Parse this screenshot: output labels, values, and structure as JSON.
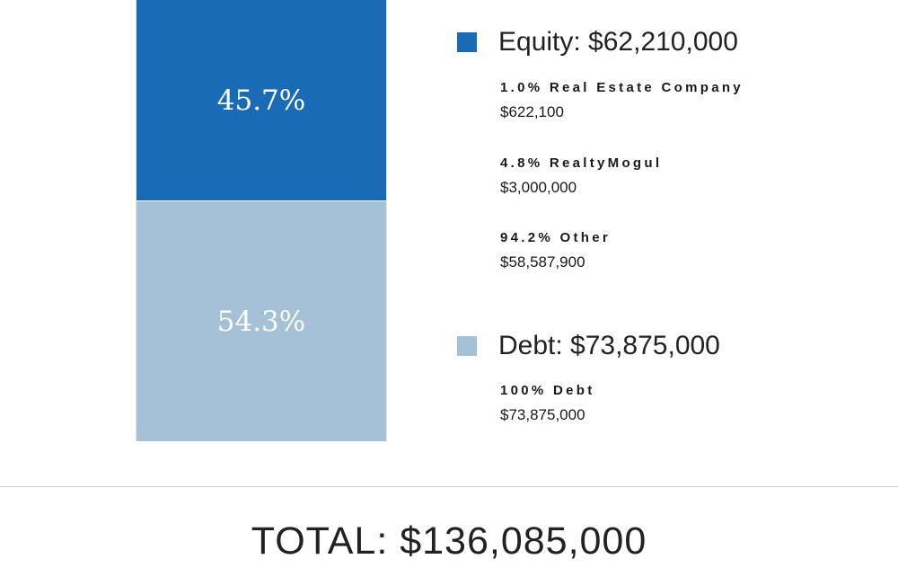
{
  "chart_data": {
    "type": "bar",
    "stacked": true,
    "categories": [
      ""
    ],
    "series": [
      {
        "name": "Equity",
        "percent": 45.7,
        "percent_label": "45.7%",
        "amount": "$62,210,000",
        "color": "#1a6bb5"
      },
      {
        "name": "Debt",
        "percent": 54.3,
        "percent_label": "54.3%",
        "amount": "$73,875,000",
        "color": "#a4c1d7"
      }
    ],
    "legend": [
      {
        "header": "Equity: $62,210,000",
        "color": "#1a6bb5",
        "items": [
          {
            "label": "1.0% Real Estate Company",
            "value": "$622,100"
          },
          {
            "label": "4.8% RealtyMogul",
            "value": "$3,000,000"
          },
          {
            "label": "94.2% Other",
            "value": "$58,587,900"
          }
        ]
      },
      {
        "header": "Debt: $73,875,000",
        "color": "#a4c1d7",
        "items": [
          {
            "label": "100% Debt",
            "value": "$73,875,000"
          }
        ]
      }
    ],
    "total": "TOTAL: $136,085,000",
    "legend_position": "right"
  }
}
